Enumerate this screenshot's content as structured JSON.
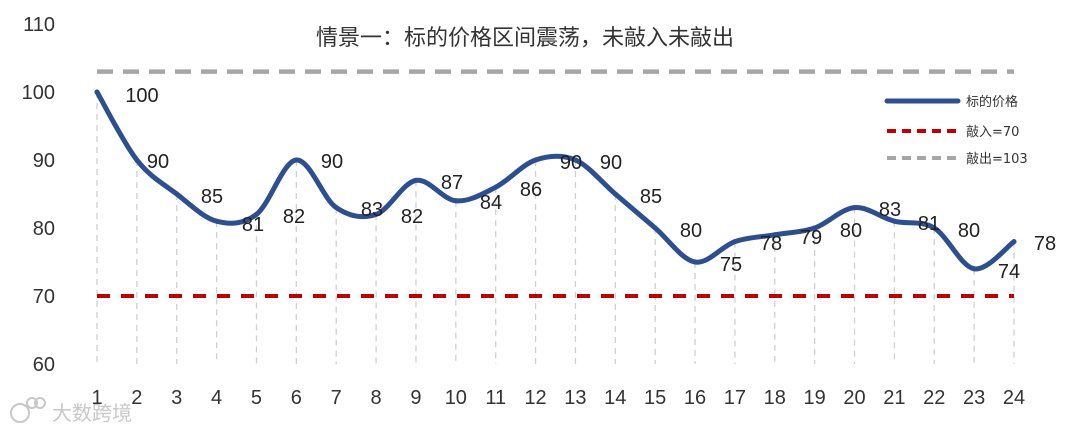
{
  "watermark": "大数跨境",
  "chart_data": {
    "type": "line",
    "title": "情景一：标的价格区间震荡，未敲入未敲出",
    "xlabel": "",
    "ylabel": "",
    "categories": [
      1,
      2,
      3,
      4,
      5,
      6,
      7,
      8,
      9,
      10,
      11,
      12,
      13,
      14,
      15,
      16,
      17,
      18,
      19,
      20,
      21,
      22,
      23,
      24
    ],
    "ylim": [
      60,
      110
    ],
    "yticks": [
      60,
      70,
      80,
      90,
      100,
      110
    ],
    "grid": "vertical-dashed",
    "legend_position": "right",
    "series": [
      {
        "name": "标的价格",
        "color": "#2e4f8f",
        "style": "solid-smooth",
        "values": [
          100,
          90,
          85,
          81,
          82,
          90,
          83,
          82,
          87,
          84,
          86,
          90,
          90,
          85,
          80,
          75,
          78,
          79,
          80,
          83,
          81,
          80,
          74,
          78
        ],
        "labels": [
          "100",
          "90",
          "85",
          "81",
          "82",
          "90",
          "83",
          "82",
          "87",
          "84",
          "86",
          "90",
          "90",
          "85",
          "80",
          "75",
          "78",
          "79",
          "80",
          "83",
          "81",
          "80",
          "74",
          "78"
        ]
      },
      {
        "name": "敲入=70",
        "color": "#c00000",
        "style": "dashed",
        "value": 70
      },
      {
        "name": "敲出=103",
        "color": "#a6a6a6",
        "style": "dashed",
        "value": 103
      }
    ]
  }
}
